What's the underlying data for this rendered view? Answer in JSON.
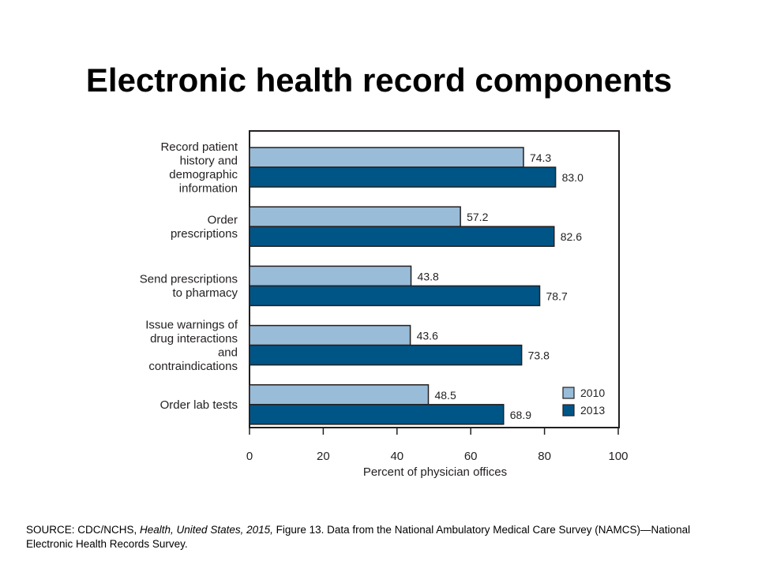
{
  "slide": {
    "title": "Electronic health record components"
  },
  "chart_data": {
    "type": "bar",
    "orientation": "horizontal",
    "categories": [
      "Record patient history and demographic information",
      "Order prescriptions",
      "Send prescriptions to pharmacy",
      "Issue warnings of drug interactions and contraindications",
      "Order lab tests"
    ],
    "category_lines": [
      [
        "Record patient",
        "history and",
        "demographic",
        "information"
      ],
      [
        "Order",
        "prescriptions"
      ],
      [
        "Send prescriptions",
        "to pharmacy"
      ],
      [
        "Issue warnings of",
        "drug interactions",
        "and",
        "contraindications"
      ],
      [
        "Order lab tests"
      ]
    ],
    "series": [
      {
        "name": "2010",
        "color": "#99bcd8",
        "values": [
          74.3,
          57.2,
          43.8,
          43.6,
          48.5
        ]
      },
      {
        "name": "2013",
        "color": "#005587",
        "values": [
          83.0,
          82.6,
          78.7,
          73.8,
          68.9
        ]
      }
    ],
    "value_labels": [
      [
        "74.3",
        "57.2",
        "43.8",
        "43.6",
        "48.5"
      ],
      [
        "83.0",
        "82.6",
        "78.7",
        "73.8",
        "68.9"
      ]
    ],
    "xlabel": "Percent of physician offices",
    "xlim": [
      0,
      100
    ],
    "xticks": [
      "0",
      "20",
      "40",
      "60",
      "80",
      "100"
    ],
    "legend_position": "bottom-right",
    "grid": false
  },
  "source": {
    "prefix": "SOURCE: CDC/NCHS, ",
    "italic": "Health, United States, 2015,",
    "suffix": " Figure 13. Data from the National Ambulatory Medical Care Survey (NAMCS)—National Electronic Health Records Survey."
  }
}
